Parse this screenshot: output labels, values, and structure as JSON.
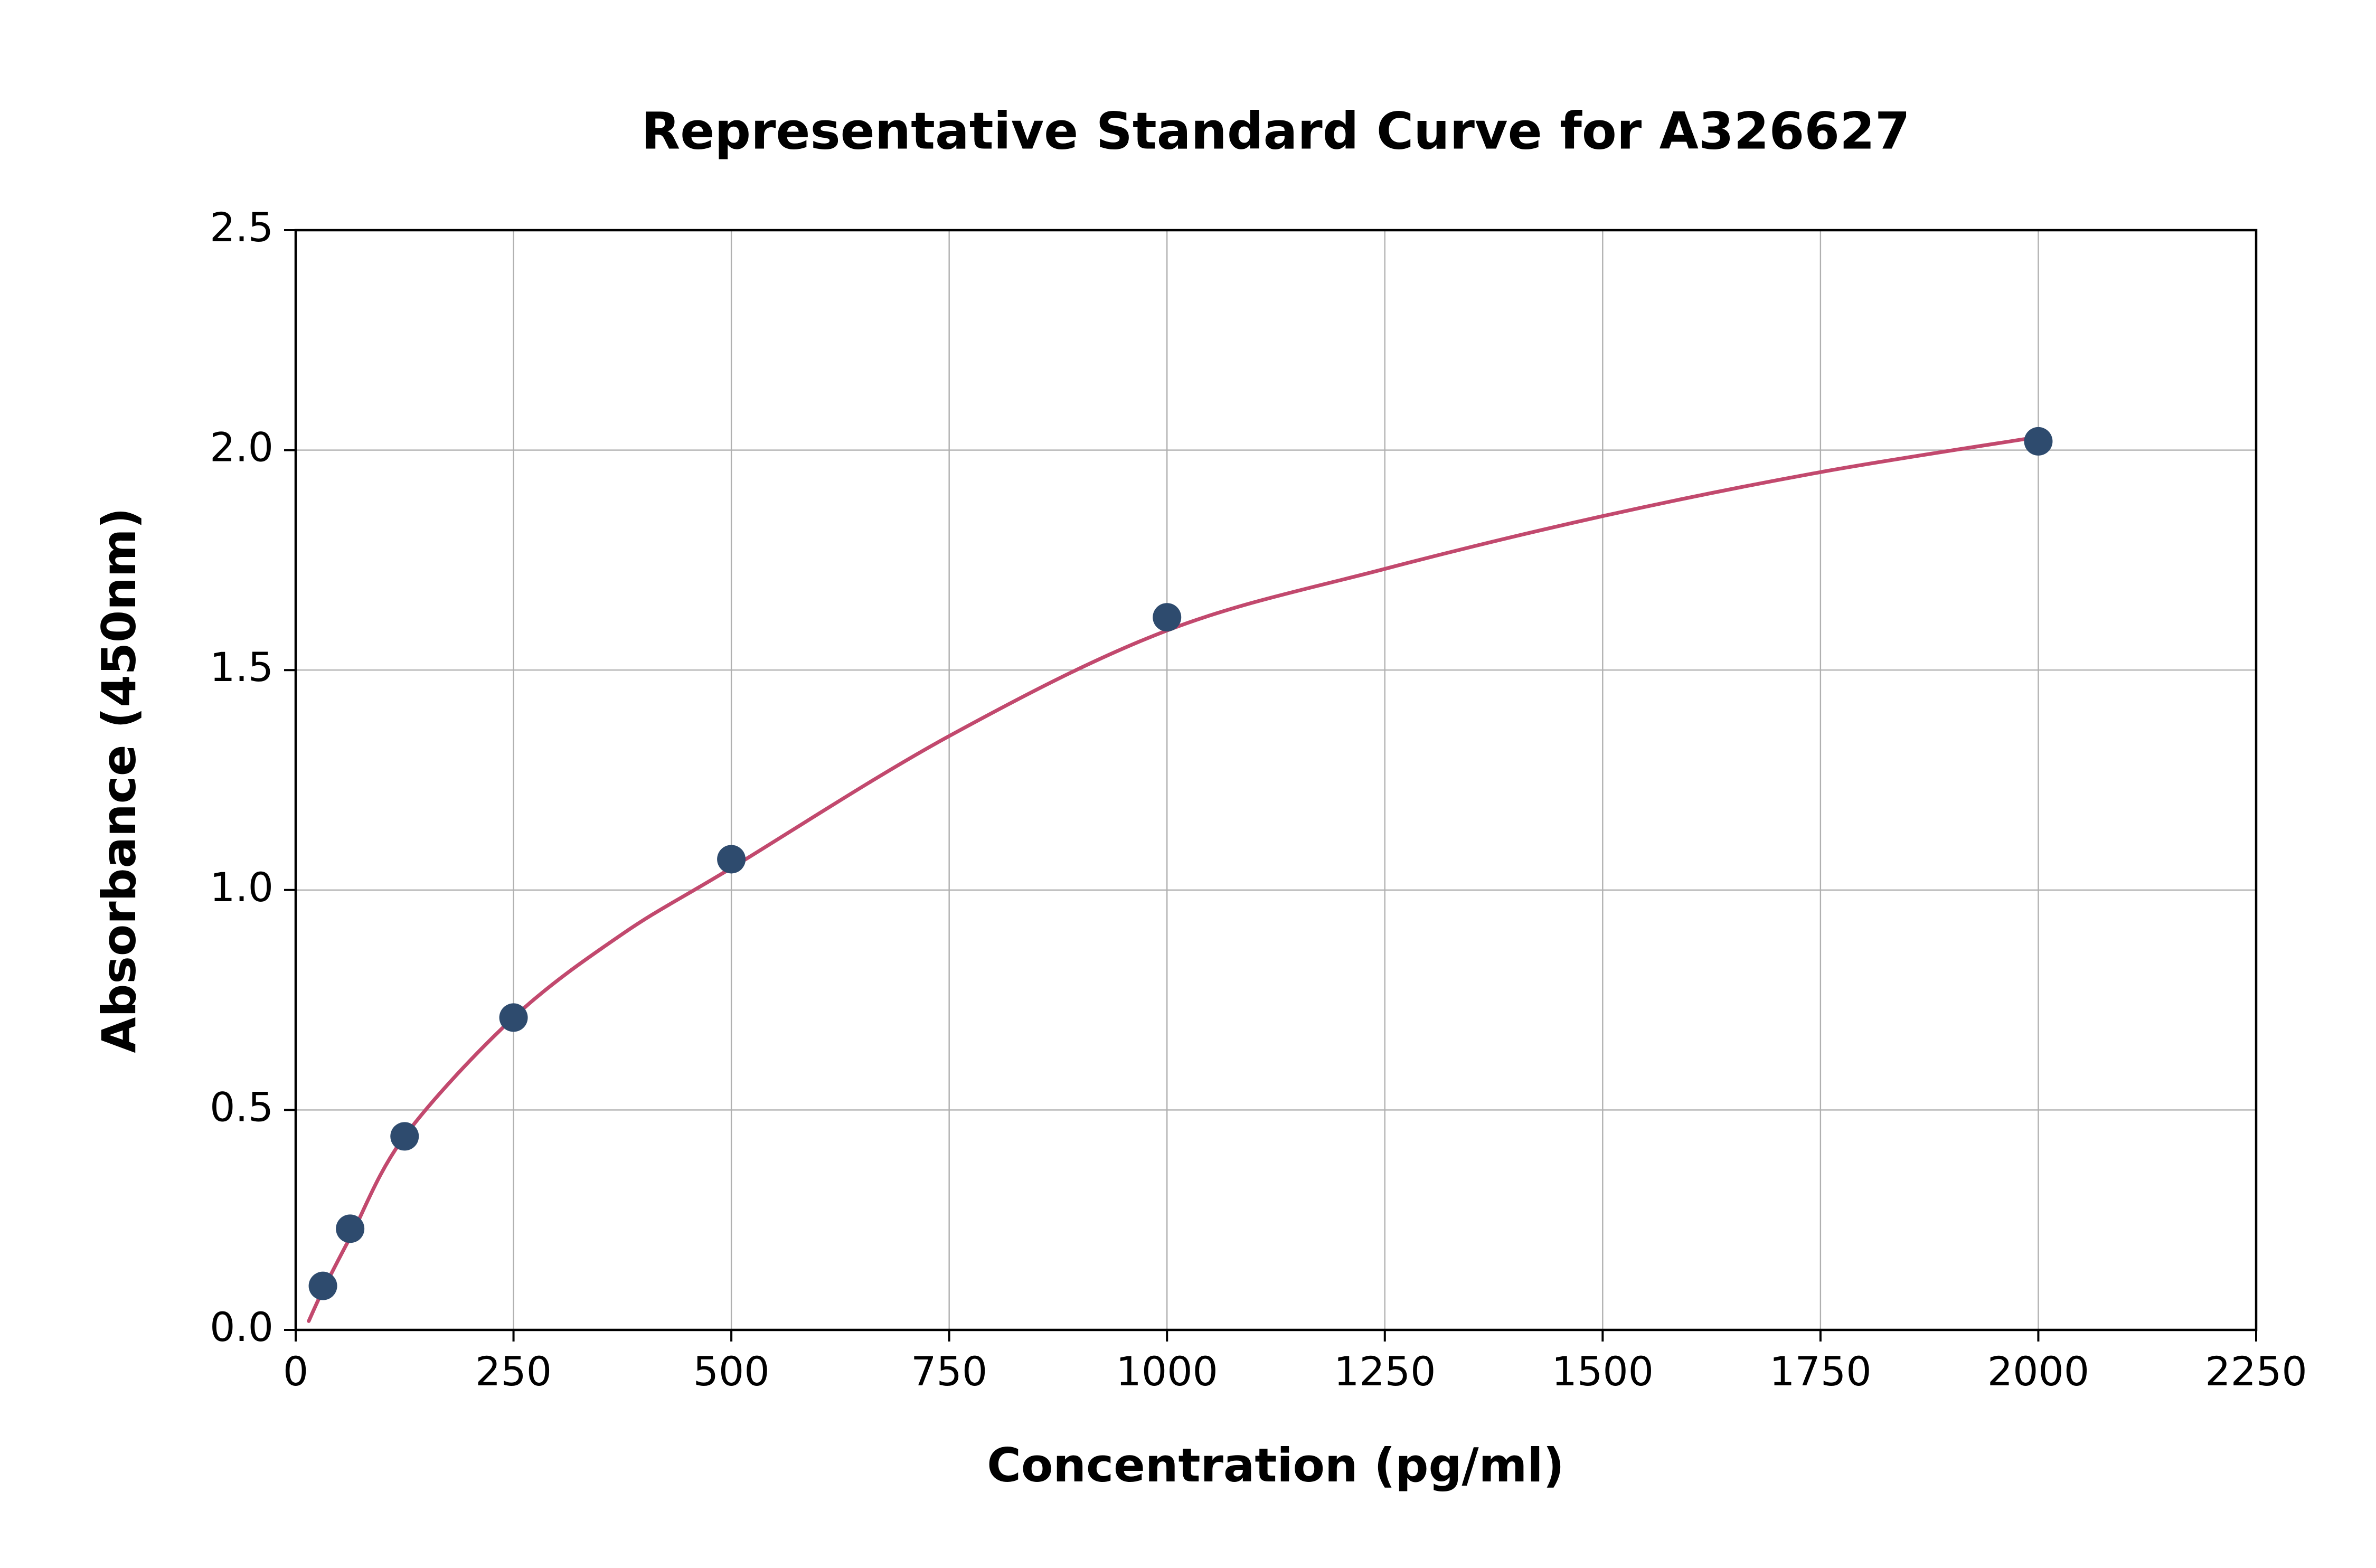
{
  "figure": {
    "title": "Representative Standard Curve for A326627",
    "xlabel": "Concentration (pg/ml)",
    "ylabel": "Absorbance (450nm)"
  },
  "chart_data": {
    "type": "scatter",
    "title": "Representative Standard Curve for A326627",
    "xlabel": "Concentration (pg/ml)",
    "ylabel": "Absorbance (450nm)",
    "xlim": [
      0,
      2250
    ],
    "ylim": [
      0,
      2.5
    ],
    "xticks": [
      0,
      250,
      500,
      750,
      1000,
      1250,
      1500,
      1750,
      2000,
      2250
    ],
    "xtick_labels": [
      "0",
      "250",
      "500",
      "750",
      "1000",
      "1250",
      "1500",
      "1750",
      "2000",
      "2250"
    ],
    "yticks": [
      0,
      0.5,
      1.0,
      1.5,
      2.0,
      2.5
    ],
    "ytick_labels": [
      "0.0",
      "0.5",
      "1.0",
      "1.5",
      "2.0",
      "2.5"
    ],
    "grid": true,
    "legend": "none",
    "series": [
      {
        "name": "standard-points",
        "type": "scatter",
        "x": [
          31.25,
          62.5,
          125,
          250,
          500,
          1000,
          2000
        ],
        "y": [
          0.1,
          0.23,
          0.44,
          0.71,
          1.07,
          1.62,
          2.02
        ]
      },
      {
        "name": "fitted-curve",
        "type": "line",
        "x": [
          15,
          31.25,
          62.5,
          125,
          250,
          375,
          500,
          750,
          1000,
          1250,
          1500,
          1750,
          2000
        ],
        "y": [
          0.02,
          0.09,
          0.21,
          0.44,
          0.71,
          0.9,
          1.05,
          1.35,
          1.59,
          1.73,
          1.85,
          1.95,
          2.03
        ]
      }
    ],
    "colors": {
      "point": "#2e4b6e",
      "curve": "#c2496e",
      "grid": "#b0b0b0",
      "axis": "#000000",
      "background": "#ffffff"
    }
  }
}
